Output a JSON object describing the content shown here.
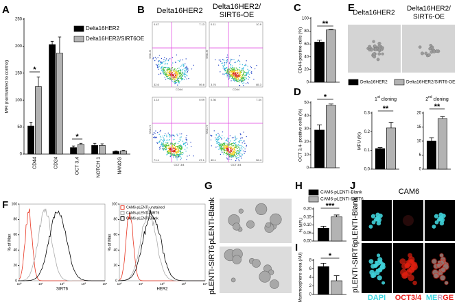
{
  "chart_data": [
    {
      "type": "bar",
      "y_label": "MFI (normalized to control)",
      "categories": [
        "CD44",
        "CD24",
        "OCT 3,4",
        "NOTCH 1",
        "NANOG"
      ],
      "series": [
        {
          "name": "Delta16HER2",
          "color": "#000000",
          "values": [
            52,
            203,
            12,
            16,
            5
          ],
          "errors": [
            7,
            6,
            3,
            4,
            1
          ]
        },
        {
          "name": "Delta16HER2/SIRT6OE",
          "color": "#b3b3b3",
          "values": [
            125,
            187,
            18,
            16,
            6
          ],
          "errors": [
            18,
            30,
            2,
            3,
            1
          ]
        }
      ],
      "ylim": [
        0,
        250
      ],
      "yticks": [
        0,
        50,
        100,
        150,
        200,
        250
      ],
      "annotations": [
        "*",
        "*"
      ]
    },
    {
      "type": "bar",
      "y_label": "CD44-positive cells (%)",
      "series": [
        {
          "color": "#000000",
          "values": [
            63
          ],
          "errors": [
            3
          ]
        },
        {
          "color": "#b3b3b3",
          "values": [
            82
          ],
          "errors": [
            1
          ]
        }
      ],
      "ylim": [
        0,
        100
      ],
      "yticks": [
        0,
        20,
        40,
        60,
        80,
        100
      ],
      "annotations": [
        "**"
      ]
    },
    {
      "type": "bar",
      "y_label": "OCT 3,4- positive cells (%)",
      "series": [
        {
          "color": "#000000",
          "values": [
            29
          ],
          "errors": [
            4
          ]
        },
        {
          "color": "#b3b3b3",
          "values": [
            48
          ],
          "errors": [
            1
          ]
        }
      ],
      "ylim": [
        0,
        50
      ],
      "yticks": [
        0,
        10,
        20,
        30,
        40,
        50
      ],
      "annotations": [
        "*"
      ]
    },
    {
      "type": "bar",
      "title": "1",
      "title_sup": "st",
      "title_rest": " cloning",
      "y_label": "MFU (%)",
      "series": [
        {
          "name": "Delta16HER2",
          "color": "#000000",
          "values": [
            0.11
          ],
          "errors": [
            0.005
          ]
        },
        {
          "name": "Delta16HER2/SIRT6-OE",
          "color": "#b3b3b3",
          "values": [
            0.22
          ],
          "errors": [
            0.03
          ]
        }
      ],
      "ylim": [
        0,
        0.3
      ],
      "yticks": [
        {
          "value": 0,
          "label": "0.0"
        },
        0.1,
        0.2,
        0.3
      ],
      "annotations": [
        "**"
      ]
    },
    {
      "type": "bar",
      "title": "2",
      "title_sup": "nd",
      "title_rest": " cloning",
      "series": [
        {
          "color": "#000000",
          "values": [
            10
          ],
          "errors": [
            1.2
          ]
        },
        {
          "color": "#b3b3b3",
          "values": [
            18
          ],
          "errors": [
            0.7
          ]
        }
      ],
      "ylim": [
        0,
        20
      ],
      "yticks": [
        0,
        5,
        10,
        15,
        20
      ],
      "annotations": [
        "**"
      ]
    },
    {
      "type": "bar",
      "y_label": "% MFU",
      "series": [
        {
          "name": "CAM6-pLENTI-Blank",
          "color": "#000000",
          "values": [
            0.08
          ],
          "errors": [
            0.012
          ]
        },
        {
          "name": "CAM6-pLENTI-SIRT6",
          "color": "#b3b3b3",
          "values": [
            0.15
          ],
          "errors": [
            0.012
          ]
        }
      ],
      "ylim": [
        0,
        0.2
      ],
      "yticks": [
        {
          "value": 0,
          "label": "0.00"
        },
        {
          "value": 0.05,
          "label": "0.05"
        },
        {
          "value": 0.1,
          "label": "0.10"
        },
        {
          "value": 0.15,
          "label": "0.15"
        },
        {
          "value": 0.2,
          "label": "0.20"
        }
      ],
      "annotations": [
        "***"
      ]
    },
    {
      "type": "bar",
      "y_label": "Mammosphere area (AU)",
      "series": [
        {
          "color": "#000000",
          "values": [
            6.5
          ],
          "errors": [
            0.8
          ]
        },
        {
          "color": "#b3b3b3",
          "values": [
            3.2
          ],
          "errors": [
            1.2
          ]
        }
      ],
      "ylim": [
        0,
        8
      ],
      "yticks": [
        0,
        2,
        4,
        6,
        8
      ],
      "annotations": [
        "*"
      ]
    }
  ],
  "figure": {
    "letters": [
      "A",
      "B",
      "C",
      "D",
      "E",
      "F",
      "G",
      "H",
      "I",
      "J"
    ],
    "b_titles": [
      [
        "Delta16HER2"
      ],
      [
        "Delta16HER2/",
        "SIRT6-OE"
      ]
    ],
    "b_plots": [
      {
        "y_label": "SSC-H",
        "x_label": "CD44",
        "quadrants": [
          "0.47",
          "7.13",
          "32.6",
          "59.8"
        ]
      },
      {
        "y_label": "SSC-H",
        "x_label": "CD44",
        "quadrants": [
          "0.11",
          "10.9",
          "3.76",
          "85.3"
        ]
      },
      {
        "y_label": "SSC-H",
        "x_label": "OCT 3/4",
        "quadrants": [
          "1.14",
          "0.09",
          "71.1",
          "27.1"
        ]
      },
      {
        "y_label": "SSC-H",
        "x_label": "OCT 3/4",
        "quadrants": [
          "0.36",
          "7.34",
          "40.1",
          "52.4"
        ]
      }
    ],
    "e_titles": [
      [
        "Delta16HER2"
      ],
      [
        "Delta16HER2/",
        "SIRT6-OE"
      ]
    ],
    "f": {
      "y_label": "% of Max",
      "x_labels": [
        "SIRT6",
        "HER2"
      ],
      "yticks": [
        0,
        20,
        40,
        60,
        80,
        100
      ],
      "xtick_labels": [
        "10⁰",
        "10¹",
        "10²",
        "10³",
        "10⁴"
      ],
      "legend": [
        {
          "name": "CAM6-pLENTI-unstained",
          "color": "#e8321e"
        },
        {
          "name": "CAM6-pLENTI-SIRT6",
          "color": "#aaaaaa"
        },
        {
          "name": "CAM6-pLENTI-Blank",
          "color": "#000000"
        }
      ]
    },
    "g_labels": [
      "pLENTI-Blank",
      "pLENTI-SIRT6"
    ],
    "j": {
      "title": "CAM6",
      "row_labels": [
        "pLENTI-Blank",
        "pLENTI-SIRT6"
      ],
      "channels": [
        {
          "text": "DAPI",
          "color": "#3fd6e0"
        },
        {
          "text": "OCT3/4",
          "color": "#e8201e"
        }
      ],
      "merge_parts": [
        {
          "text": "ME",
          "color": "#3fd6e0"
        },
        {
          "text": "R",
          "color": "#c9a0c0"
        },
        {
          "text": "GE",
          "color": "#e8201e"
        }
      ]
    }
  }
}
